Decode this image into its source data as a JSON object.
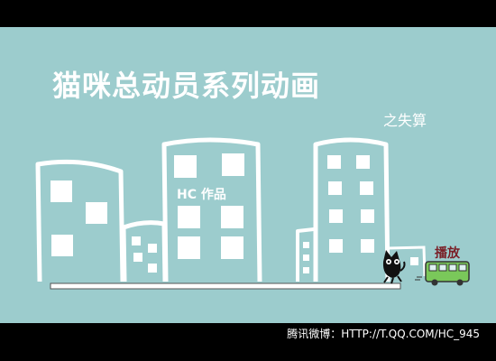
{
  "scene": {
    "title": "猫咪总动员系列动画",
    "subtitle": "之失算",
    "building_label": "HC 作品",
    "play_label": "播放"
  },
  "footer": {
    "credit": "腾讯微博：HTTP://T.QQ.COM/HC_945"
  },
  "colors": {
    "sky": "#9ccccd",
    "line": "#ffffff",
    "bar": "#000000",
    "bus_body": "#7ac85a",
    "play_text": "#7a1e26"
  }
}
